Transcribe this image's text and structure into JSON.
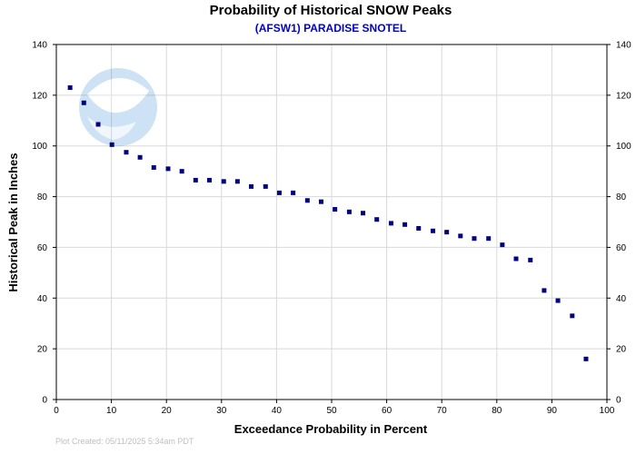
{
  "chart_data": {
    "type": "scatter",
    "title": "Probability of Historical SNOW Peaks",
    "subtitle": "(AFSW1) PARADISE SNOTEL",
    "xlabel": "Exceedance Probability in Percent",
    "ylabel": "Historical Peak in Inches",
    "xlim": [
      0,
      100
    ],
    "ylim": [
      0,
      140
    ],
    "x_ticks": [
      0,
      10,
      20,
      30,
      40,
      50,
      60,
      70,
      80,
      90,
      100
    ],
    "y_ticks": [
      0,
      20,
      40,
      60,
      80,
      100,
      120,
      140
    ],
    "grid": true,
    "colors": {
      "point": "#000080",
      "subtitle": "#0000cc",
      "grid": "#d8d8d8"
    },
    "points": [
      {
        "x": 2.5,
        "y": 123
      },
      {
        "x": 5.0,
        "y": 117
      },
      {
        "x": 7.6,
        "y": 108.5
      },
      {
        "x": 10.1,
        "y": 100.5
      },
      {
        "x": 12.7,
        "y": 97.5
      },
      {
        "x": 15.2,
        "y": 95.5
      },
      {
        "x": 17.7,
        "y": 91.5
      },
      {
        "x": 20.3,
        "y": 91
      },
      {
        "x": 22.8,
        "y": 90
      },
      {
        "x": 25.3,
        "y": 86.5
      },
      {
        "x": 27.8,
        "y": 86.5
      },
      {
        "x": 30.4,
        "y": 86
      },
      {
        "x": 32.9,
        "y": 86
      },
      {
        "x": 35.4,
        "y": 84
      },
      {
        "x": 38.0,
        "y": 84
      },
      {
        "x": 40.5,
        "y": 81.5
      },
      {
        "x": 43.0,
        "y": 81.5
      },
      {
        "x": 45.6,
        "y": 78.5
      },
      {
        "x": 48.1,
        "y": 78
      },
      {
        "x": 50.6,
        "y": 75
      },
      {
        "x": 53.2,
        "y": 74
      },
      {
        "x": 55.7,
        "y": 73.5
      },
      {
        "x": 58.2,
        "y": 71
      },
      {
        "x": 60.8,
        "y": 69.5
      },
      {
        "x": 63.3,
        "y": 69
      },
      {
        "x": 65.8,
        "y": 67.5
      },
      {
        "x": 68.4,
        "y": 66.5
      },
      {
        "x": 70.9,
        "y": 66
      },
      {
        "x": 73.4,
        "y": 64.5
      },
      {
        "x": 75.9,
        "y": 63.5
      },
      {
        "x": 78.5,
        "y": 63.5
      },
      {
        "x": 81.0,
        "y": 61
      },
      {
        "x": 83.5,
        "y": 55.5
      },
      {
        "x": 86.1,
        "y": 55
      },
      {
        "x": 88.6,
        "y": 43
      },
      {
        "x": 91.1,
        "y": 39
      },
      {
        "x": 93.7,
        "y": 33
      },
      {
        "x": 96.2,
        "y": 16
      }
    ]
  },
  "watermark": {
    "logo_text": "NOAA"
  },
  "footer": {
    "created": "Plot Created:  05/11/2025  5:34am PDT"
  }
}
